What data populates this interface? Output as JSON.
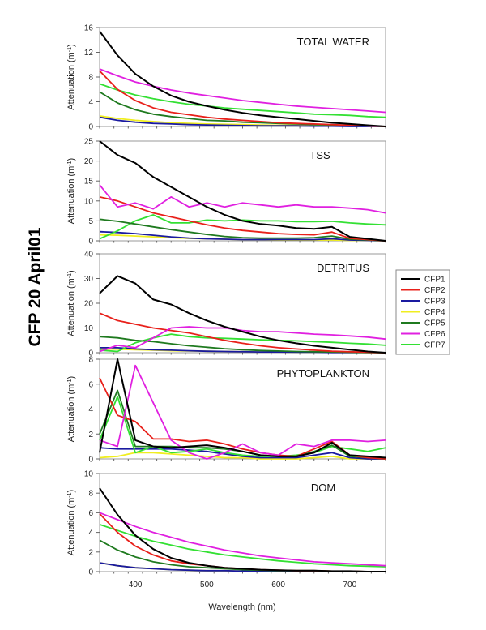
{
  "chart_data": {
    "type": "line",
    "title": "CFP 20 April01",
    "xlabel": "Wavelength (nm)",
    "xlim": [
      350,
      750
    ],
    "x_ticks": [
      400,
      500,
      600,
      700
    ],
    "legend": {
      "placement": "right",
      "entries": [
        {
          "name": "CFP1",
          "color": "#000000"
        },
        {
          "name": "CFP2",
          "color": "#e8201a"
        },
        {
          "name": "CFP3",
          "color": "#1a1aa0"
        },
        {
          "name": "CFP4",
          "color": "#f0ee20"
        },
        {
          "name": "CFP5",
          "color": "#1f7a1f"
        },
        {
          "name": "CFP6",
          "color": "#e020e0"
        },
        {
          "name": "CFP7",
          "color": "#33e033"
        }
      ]
    },
    "x": [
      350,
      375,
      400,
      425,
      450,
      475,
      500,
      525,
      550,
      575,
      600,
      625,
      650,
      675,
      700,
      725,
      750
    ],
    "panels": [
      {
        "title": "TOTAL WATER",
        "ylabel": "Attenuation (m-1)",
        "ylim": [
          0,
          16
        ],
        "y_ticks": [
          0,
          4,
          8,
          12,
          16
        ],
        "series": [
          {
            "name": "CFP1",
            "values": [
              15.4,
              11.5,
              8.5,
              6.5,
              5.0,
              4.0,
              3.3,
              2.7,
              2.2,
              1.8,
              1.5,
              1.2,
              0.9,
              0.6,
              0.4,
              0.2,
              0.0
            ]
          },
          {
            "name": "CFP2",
            "values": [
              9.0,
              6.0,
              4.2,
              3.0,
              2.3,
              1.9,
              1.5,
              1.2,
              1.0,
              0.8,
              0.6,
              0.5,
              0.4,
              0.3,
              0.2,
              0.1,
              0.0
            ]
          },
          {
            "name": "CFP3",
            "values": [
              1.5,
              1.0,
              0.7,
              0.5,
              0.4,
              0.3,
              0.25,
              0.2,
              0.15,
              0.1,
              0.1,
              0.1,
              0.05,
              0.05,
              0.0,
              0.0,
              0.0
            ]
          },
          {
            "name": "CFP4",
            "values": [
              1.7,
              1.3,
              1.0,
              0.8,
              0.6,
              0.5,
              0.4,
              0.35,
              0.3,
              0.25,
              0.2,
              0.2,
              0.15,
              0.1,
              0.1,
              0.05,
              0.0
            ]
          },
          {
            "name": "CFP5",
            "values": [
              5.6,
              3.8,
              2.7,
              2.0,
              1.6,
              1.3,
              1.0,
              0.9,
              0.7,
              0.6,
              0.5,
              0.4,
              0.3,
              0.25,
              0.2,
              0.1,
              0.0
            ]
          },
          {
            "name": "CFP6",
            "values": [
              9.3,
              8.2,
              7.2,
              6.5,
              5.9,
              5.4,
              5.0,
              4.6,
              4.2,
              3.9,
              3.6,
              3.3,
              3.1,
              2.9,
              2.7,
              2.5,
              2.3
            ]
          },
          {
            "name": "CFP7",
            "values": [
              6.9,
              5.9,
              5.1,
              4.5,
              4.0,
              3.6,
              3.3,
              3.0,
              2.8,
              2.6,
              2.4,
              2.2,
              2.0,
              1.9,
              1.8,
              1.6,
              1.5
            ]
          }
        ]
      },
      {
        "title": "TSS",
        "ylabel": "Attenuation (m-1)",
        "ylim": [
          0,
          25
        ],
        "y_ticks": [
          0,
          5,
          10,
          15,
          20,
          25
        ],
        "series": [
          {
            "name": "CFP1",
            "values": [
              25.0,
              21.5,
              19.5,
              16.0,
              13.5,
              11.0,
              8.5,
              6.5,
              5.0,
              4.2,
              3.8,
              3.2,
              3.0,
              3.5,
              1.0,
              0.5,
              0.0
            ]
          },
          {
            "name": "CFP2",
            "values": [
              11.0,
              10.0,
              8.5,
              7.0,
              6.0,
              5.0,
              4.0,
              3.2,
              2.6,
              2.2,
              1.8,
              1.6,
              1.5,
              2.2,
              0.6,
              0.3,
              0.0
            ]
          },
          {
            "name": "CFP3",
            "values": [
              2.3,
              2.1,
              1.8,
              1.4,
              1.0,
              0.7,
              0.5,
              0.4,
              0.3,
              0.3,
              0.3,
              0.3,
              0.3,
              0.5,
              0.2,
              0.1,
              0.0
            ]
          },
          {
            "name": "CFP4",
            "values": [
              1.5,
              1.4,
              1.2,
              1.0,
              0.8,
              0.6,
              0.5,
              0.4,
              0.3,
              0.3,
              0.2,
              0.2,
              0.2,
              0.2,
              0.1,
              0.1,
              0.0
            ]
          },
          {
            "name": "CFP5",
            "values": [
              5.4,
              4.9,
              4.2,
              3.5,
              2.8,
              2.2,
              1.6,
              1.1,
              0.8,
              0.7,
              0.7,
              0.7,
              0.8,
              1.2,
              0.4,
              0.2,
              0.0
            ]
          },
          {
            "name": "CFP6",
            "values": [
              14.0,
              8.5,
              9.5,
              8.0,
              11.0,
              8.5,
              9.5,
              8.5,
              9.5,
              9.0,
              8.5,
              9.0,
              8.5,
              8.5,
              8.2,
              7.8,
              7.0
            ]
          },
          {
            "name": "CFP7",
            "values": [
              0.5,
              2.5,
              5.0,
              6.5,
              4.5,
              4.5,
              5.2,
              5.0,
              5.2,
              5.0,
              5.0,
              4.8,
              4.8,
              4.9,
              4.5,
              4.2,
              4.0
            ]
          }
        ]
      },
      {
        "title": "DETRITUS",
        "ylabel": "Attenuation (m-1)",
        "ylim": [
          0,
          40
        ],
        "y_ticks": [
          0,
          10,
          20,
          30,
          40
        ],
        "series": [
          {
            "name": "CFP1",
            "values": [
              24.0,
              31.0,
              28.0,
              21.5,
              19.5,
              16.0,
              13.0,
              10.5,
              8.5,
              6.5,
              5.0,
              3.8,
              2.8,
              2.0,
              1.2,
              0.5,
              0.0
            ]
          },
          {
            "name": "CFP2",
            "values": [
              16.0,
              13.0,
              11.5,
              10.0,
              9.0,
              8.0,
              6.5,
              5.0,
              3.8,
              2.8,
              2.0,
              1.5,
              1.0,
              0.6,
              0.4,
              0.2,
              0.0
            ]
          },
          {
            "name": "CFP3",
            "values": [
              2.0,
              2.0,
              1.5,
              1.2,
              1.0,
              0.8,
              0.6,
              0.5,
              0.4,
              0.3,
              0.3,
              0.2,
              0.2,
              0.1,
              0.1,
              0.1,
              0.0
            ]
          },
          {
            "name": "CFP4",
            "values": [
              1.5,
              1.4,
              1.2,
              1.0,
              0.8,
              0.7,
              0.6,
              0.5,
              0.4,
              0.3,
              0.3,
              0.2,
              0.2,
              0.2,
              0.1,
              0.1,
              0.0
            ]
          },
          {
            "name": "CFP5",
            "values": [
              6.5,
              6.0,
              5.0,
              4.5,
              3.6,
              2.8,
              2.2,
              1.6,
              1.2,
              0.9,
              0.7,
              0.5,
              0.4,
              0.3,
              0.2,
              0.1,
              0.0
            ]
          },
          {
            "name": "CFP6",
            "values": [
              0.5,
              3.0,
              2.0,
              6.0,
              10.0,
              10.5,
              10.0,
              10.0,
              9.0,
              8.5,
              8.5,
              8.0,
              7.5,
              7.2,
              6.8,
              6.3,
              5.5
            ]
          },
          {
            "name": "CFP7",
            "values": [
              1.0,
              0.5,
              4.0,
              6.0,
              7.5,
              6.5,
              6.0,
              5.8,
              5.5,
              5.2,
              5.0,
              4.8,
              4.5,
              4.2,
              3.8,
              3.5,
              3.0
            ]
          }
        ]
      },
      {
        "title": "PHYTOPLANKTON",
        "ylabel": "Attenuation (m-1)",
        "ylim": [
          0,
          8
        ],
        "y_ticks": [
          0,
          2,
          4,
          6,
          8
        ],
        "series": [
          {
            "name": "CFP1",
            "values": [
              0.5,
              8.0,
              1.5,
              1.0,
              0.9,
              1.0,
              1.1,
              0.9,
              0.6,
              0.3,
              0.2,
              0.2,
              0.5,
              1.3,
              0.3,
              0.2,
              0.1
            ]
          },
          {
            "name": "CFP2",
            "values": [
              6.5,
              3.5,
              3.0,
              1.6,
              1.6,
              1.4,
              1.5,
              1.2,
              0.8,
              0.5,
              0.3,
              0.2,
              0.8,
              1.4,
              0.3,
              0.1,
              0.0
            ]
          },
          {
            "name": "CFP3",
            "values": [
              0.9,
              0.8,
              0.8,
              0.8,
              0.8,
              0.7,
              0.6,
              0.4,
              0.2,
              0.1,
              0.1,
              0.1,
              0.3,
              0.5,
              0.1,
              0.0,
              0.0
            ]
          },
          {
            "name": "CFP4",
            "values": [
              0.1,
              0.2,
              0.5,
              0.5,
              0.4,
              0.3,
              0.2,
              0.1,
              0.1,
              0.0,
              0.0,
              0.0,
              0.1,
              0.2,
              0.0,
              0.0,
              0.0
            ]
          },
          {
            "name": "CFP5",
            "values": [
              2.0,
              5.5,
              1.0,
              1.0,
              1.0,
              0.9,
              0.9,
              0.8,
              0.6,
              0.3,
              0.2,
              0.2,
              0.6,
              1.1,
              0.2,
              0.1,
              0.0
            ]
          },
          {
            "name": "CFP6",
            "values": [
              1.5,
              1.0,
              7.5,
              4.5,
              1.5,
              0.5,
              0.0,
              0.5,
              1.2,
              0.5,
              0.3,
              1.2,
              1.0,
              1.5,
              1.5,
              1.4,
              1.5
            ]
          },
          {
            "name": "CFP7",
            "values": [
              1.5,
              5.0,
              0.5,
              1.0,
              0.5,
              0.6,
              0.8,
              0.5,
              0.3,
              0.2,
              0.2,
              0.3,
              0.5,
              1.0,
              0.8,
              0.6,
              0.9
            ]
          }
        ]
      },
      {
        "title": "DOM",
        "ylabel": "Attenuation (m-1)",
        "ylim": [
          0,
          10
        ],
        "y_ticks": [
          0,
          2,
          4,
          6,
          8,
          10
        ],
        "series": [
          {
            "name": "CFP1",
            "values": [
              8.5,
              5.8,
              3.7,
              2.3,
              1.4,
              0.9,
              0.6,
              0.4,
              0.3,
              0.2,
              0.15,
              0.1,
              0.1,
              0.05,
              0.05,
              0.0,
              0.0
            ]
          },
          {
            "name": "CFP2",
            "values": [
              5.9,
              4.0,
              2.6,
              1.7,
              1.1,
              0.8,
              0.6,
              0.4,
              0.3,
              0.2,
              0.15,
              0.1,
              0.1,
              0.05,
              0.05,
              0.0,
              0.0
            ]
          },
          {
            "name": "CFP3",
            "values": [
              0.9,
              0.6,
              0.4,
              0.3,
              0.2,
              0.15,
              0.1,
              0.1,
              0.05,
              0.05,
              0.0,
              0.0,
              0.0,
              0.0,
              0.0,
              0.0,
              0.0
            ]
          },
          {
            "name": "CFP4",
            "values": [
              0.9,
              0.6,
              0.4,
              0.3,
              0.2,
              0.15,
              0.1,
              0.1,
              0.05,
              0.05,
              0.05,
              0.0,
              0.0,
              0.0,
              0.0,
              0.0,
              0.0
            ]
          },
          {
            "name": "CFP5",
            "values": [
              3.2,
              2.2,
              1.5,
              1.0,
              0.7,
              0.5,
              0.4,
              0.3,
              0.2,
              0.15,
              0.1,
              0.1,
              0.1,
              0.05,
              0.05,
              0.0,
              0.0
            ]
          },
          {
            "name": "CFP6",
            "values": [
              6.0,
              5.3,
              4.6,
              4.0,
              3.5,
              3.0,
              2.6,
              2.2,
              1.9,
              1.6,
              1.4,
              1.2,
              1.0,
              0.9,
              0.8,
              0.7,
              0.6
            ]
          },
          {
            "name": "CFP7",
            "values": [
              4.8,
              4.2,
              3.6,
              3.1,
              2.7,
              2.3,
              2.0,
              1.7,
              1.5,
              1.3,
              1.1,
              0.95,
              0.8,
              0.7,
              0.6,
              0.55,
              0.5
            ]
          }
        ]
      }
    ]
  }
}
